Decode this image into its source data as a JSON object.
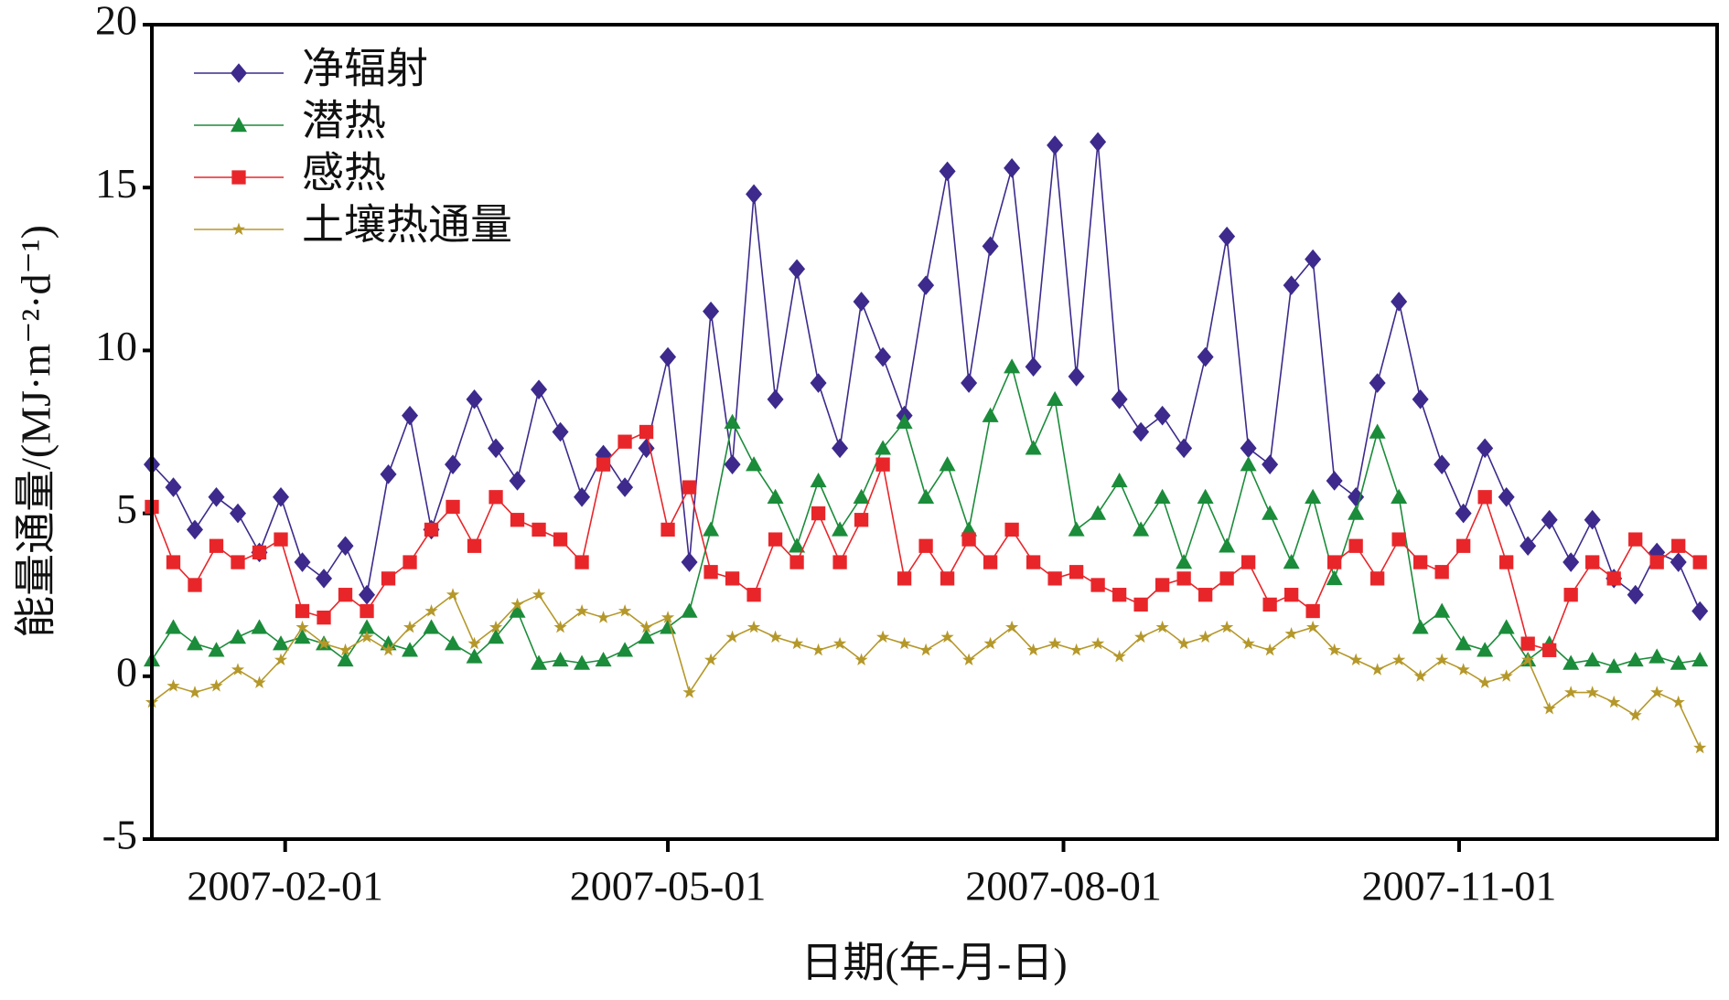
{
  "chart_data": {
    "type": "line",
    "x_label": "日期(年-月-日)",
    "y_label": "能量通量/(MJ·m⁻²·d⁻¹)",
    "x": [
      "2007-01-01",
      "2007-01-06",
      "2007-01-11",
      "2007-01-16",
      "2007-01-21",
      "2007-01-26",
      "2007-01-31",
      "2007-02-05",
      "2007-02-10",
      "2007-02-15",
      "2007-02-20",
      "2007-02-25",
      "2007-03-02",
      "2007-03-07",
      "2007-03-12",
      "2007-03-17",
      "2007-03-22",
      "2007-03-27",
      "2007-04-01",
      "2007-04-06",
      "2007-04-11",
      "2007-04-16",
      "2007-04-21",
      "2007-04-26",
      "2007-05-01",
      "2007-05-06",
      "2007-05-11",
      "2007-05-16",
      "2007-05-21",
      "2007-05-26",
      "2007-05-31",
      "2007-06-05",
      "2007-06-10",
      "2007-06-15",
      "2007-06-20",
      "2007-06-25",
      "2007-06-30",
      "2007-07-05",
      "2007-07-10",
      "2007-07-15",
      "2007-07-20",
      "2007-07-25",
      "2007-07-30",
      "2007-08-04",
      "2007-08-09",
      "2007-08-14",
      "2007-08-19",
      "2007-08-24",
      "2007-08-29",
      "2007-09-03",
      "2007-09-08",
      "2007-09-13",
      "2007-09-18",
      "2007-09-23",
      "2007-09-28",
      "2007-10-03",
      "2007-10-08",
      "2007-10-13",
      "2007-10-18",
      "2007-10-23",
      "2007-10-28",
      "2007-11-02",
      "2007-11-07",
      "2007-11-12",
      "2007-11-17",
      "2007-11-22",
      "2007-11-27",
      "2007-12-02",
      "2007-12-07",
      "2007-12-12",
      "2007-12-17",
      "2007-12-22",
      "2007-12-27"
    ],
    "series": [
      {
        "name": "净辐射",
        "color": "#3d2a8c",
        "marker": "diamond",
        "values": [
          6.5,
          5.8,
          4.5,
          5.5,
          5.0,
          3.8,
          5.5,
          3.5,
          3.0,
          4.0,
          2.5,
          6.2,
          8.0,
          4.5,
          6.5,
          8.5,
          7.0,
          6.0,
          8.8,
          7.5,
          5.5,
          6.8,
          5.8,
          7.0,
          9.8,
          3.5,
          11.2,
          6.5,
          14.8,
          8.5,
          12.5,
          9.0,
          7.0,
          11.5,
          9.8,
          8.0,
          12.0,
          15.5,
          9.0,
          13.2,
          15.6,
          9.5,
          16.3,
          9.2,
          16.4,
          8.5,
          7.5,
          8.0,
          7.0,
          9.8,
          13.5,
          7.0,
          6.5,
          12.0,
          12.8,
          6.0,
          5.5,
          9.0,
          11.5,
          8.5,
          6.5,
          5.0,
          7.0,
          5.5,
          4.0,
          4.8,
          3.5,
          4.8,
          3.0,
          2.5,
          3.8,
          3.5,
          2.0
        ]
      },
      {
        "name": "潜热",
        "color": "#1b8c3a",
        "marker": "triangle",
        "values": [
          0.5,
          1.5,
          1.0,
          0.8,
          1.2,
          1.5,
          1.0,
          1.2,
          1.0,
          0.5,
          1.5,
          1.0,
          0.8,
          1.5,
          1.0,
          0.6,
          1.2,
          2.0,
          0.4,
          0.5,
          0.4,
          0.5,
          0.8,
          1.2,
          1.5,
          2.0,
          4.5,
          7.8,
          6.5,
          5.5,
          4.0,
          6.0,
          4.5,
          5.5,
          7.0,
          7.8,
          5.5,
          6.5,
          4.5,
          8.0,
          9.5,
          7.0,
          8.5,
          4.5,
          5.0,
          6.0,
          4.5,
          5.5,
          3.5,
          5.5,
          4.0,
          6.5,
          5.0,
          3.5,
          5.5,
          3.0,
          5.0,
          7.5,
          5.5,
          1.5,
          2.0,
          1.0,
          0.8,
          1.5,
          0.5,
          1.0,
          0.4,
          0.5,
          0.3,
          0.5,
          0.6,
          0.4,
          0.5
        ]
      },
      {
        "name": "感热",
        "color": "#e8262a",
        "marker": "square",
        "values": [
          5.2,
          3.5,
          2.8,
          4.0,
          3.5,
          3.8,
          4.2,
          2.0,
          1.8,
          2.5,
          2.0,
          3.0,
          3.5,
          4.5,
          5.2,
          4.0,
          5.5,
          4.8,
          4.5,
          4.2,
          3.5,
          6.5,
          7.2,
          7.5,
          4.5,
          5.8,
          3.2,
          3.0,
          2.5,
          4.2,
          3.5,
          5.0,
          3.5,
          4.8,
          6.5,
          3.0,
          4.0,
          3.0,
          4.2,
          3.5,
          4.5,
          3.5,
          3.0,
          3.2,
          2.8,
          2.5,
          2.2,
          2.8,
          3.0,
          2.5,
          3.0,
          3.5,
          2.2,
          2.5,
          2.0,
          3.5,
          4.0,
          3.0,
          4.2,
          3.5,
          3.2,
          4.0,
          5.5,
          3.5,
          1.0,
          0.8,
          2.5,
          3.5,
          3.0,
          4.2,
          3.5,
          4.0,
          3.5
        ]
      },
      {
        "name": "土壤热通量",
        "color": "#b5982a",
        "marker": "star",
        "values": [
          -0.8,
          -0.3,
          -0.5,
          -0.3,
          0.2,
          -0.2,
          0.5,
          1.5,
          1.0,
          0.8,
          1.2,
          0.8,
          1.5,
          2.0,
          2.5,
          1.0,
          1.5,
          2.2,
          2.5,
          1.5,
          2.0,
          1.8,
          2.0,
          1.5,
          1.8,
          -0.5,
          0.5,
          1.2,
          1.5,
          1.2,
          1.0,
          0.8,
          1.0,
          0.5,
          1.2,
          1.0,
          0.8,
          1.2,
          0.5,
          1.0,
          1.5,
          0.8,
          1.0,
          0.8,
          1.0,
          0.6,
          1.2,
          1.5,
          1.0,
          1.2,
          1.5,
          1.0,
          0.8,
          1.3,
          1.5,
          0.8,
          0.5,
          0.2,
          0.5,
          0.0,
          0.5,
          0.2,
          -0.2,
          0.0,
          0.5,
          -1.0,
          -0.5,
          -0.5,
          -0.8,
          -1.2,
          -0.5,
          -0.8,
          -2.2
        ]
      }
    ],
    "xlim": [
      "2007-01-01",
      "2007-12-31"
    ],
    "xticks": [
      "2007-02-01",
      "2007-05-01",
      "2007-08-01",
      "2007-11-01"
    ],
    "ylim": [
      -5,
      20
    ],
    "yticks": [
      -5,
      0,
      5,
      10,
      15,
      20
    ],
    "legend": "upper left"
  }
}
